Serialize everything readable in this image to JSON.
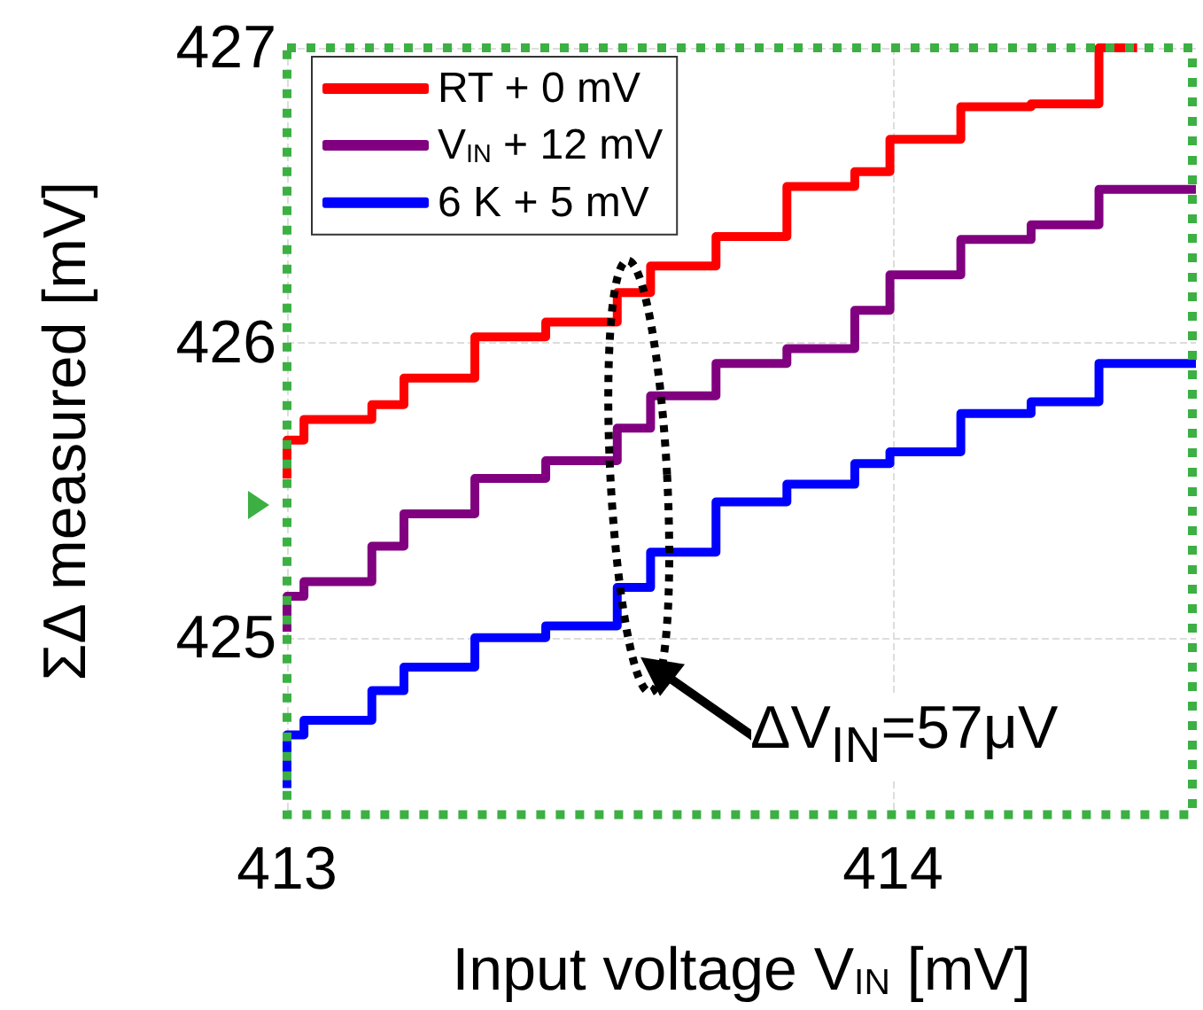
{
  "chart_data": {
    "type": "step",
    "xlabel": "Input voltage V$_{IN}$ [mV]",
    "ylabel": "ΣΔ measured [mV]",
    "xlim": [
      413,
      414.5
    ],
    "xticks": [
      413,
      414
    ],
    "ylim": [
      424.4,
      427
    ],
    "yticks": [
      425,
      426,
      427
    ],
    "grid": true,
    "legend": "top left",
    "series": [
      {
        "name": "RT + 0 mV",
        "color": "#ff0000",
        "x": [
          413,
          413.028,
          413.14,
          413.193,
          413.31,
          413.427,
          413.545,
          413.6,
          413.708,
          413.825,
          413.937,
          413.995,
          414.112,
          414.228,
          414.34,
          414.403
        ],
        "values": [
          425.54,
          425.67,
          425.74,
          425.79,
          425.88,
          426.02,
          426.07,
          426.17,
          426.26,
          426.36,
          426.53,
          426.58,
          426.69,
          426.8,
          426.81,
          427
        ]
      },
      {
        "name": "V$_{IN}$ + 12 mV",
        "color": "#800080",
        "x": [
          413,
          413.028,
          413.14,
          413.193,
          413.31,
          413.427,
          413.545,
          413.6,
          413.708,
          413.825,
          413.937,
          413.995,
          414.112,
          414.228,
          414.34,
          414.403,
          414.5
        ],
        "values": [
          425.02,
          425.14,
          425.19,
          425.31,
          425.42,
          425.54,
          425.6,
          425.71,
          425.82,
          425.93,
          425.98,
          426.11,
          426.23,
          426.35,
          426.4,
          426.52,
          426.52
        ]
      },
      {
        "name": "6 K + 5 mV",
        "color": "#0000ff",
        "x": [
          413,
          413.028,
          413.14,
          413.193,
          413.31,
          413.427,
          413.545,
          413.6,
          413.708,
          413.825,
          413.937,
          413.995,
          414.112,
          414.228,
          414.34,
          414.403,
          414.5
        ],
        "values": [
          424.49,
          424.67,
          424.72,
          424.82,
          424.9,
          425.0,
          425.04,
          425.17,
          425.29,
          425.46,
          425.52,
          425.59,
          425.63,
          425.76,
          425.8,
          425.93,
          425.93
        ]
      }
    ],
    "annotations": [
      "ΔV$_{IN}$=57μV"
    ]
  }
}
